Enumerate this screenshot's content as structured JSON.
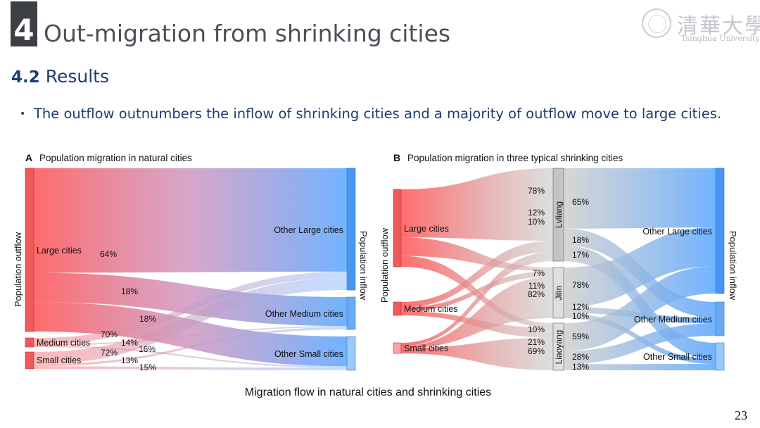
{
  "section": {
    "number": "4",
    "title": "Out-migration from shrinking cities"
  },
  "logo": {
    "chinese": "清華大學",
    "english": "Tsinghua University"
  },
  "subtitle": {
    "number": "4.2",
    "text": "Results"
  },
  "bullet": {
    "marker": "•",
    "text": "The outflow outnumbers the inflow of shrinking cities and a majority of outflow move to large cities."
  },
  "caption": "Migration flow in natural cities and shrinking cities",
  "page_number": "23",
  "colors": {
    "source_red": "#ff6b6b",
    "target_blue": "#4a9df5",
    "mid_gray": "#c8c8c8",
    "title_navy": "#1e3c72"
  },
  "chart_data": [
    {
      "type": "sankey",
      "panel": "A",
      "title": "Population migration in natural cities",
      "left_axis_label": "Population outflow",
      "right_axis_label": "Population inflow",
      "sources": [
        "Large cities",
        "Medium cities",
        "Small cities"
      ],
      "targets": [
        "Other Large cities",
        "Other Medium cities",
        "Other Small cities"
      ],
      "flows": [
        {
          "from": "Large cities",
          "to": "Other Large cities",
          "share": 64,
          "label": "64%"
        },
        {
          "from": "Large cities",
          "to": "Other Medium cities",
          "share": 18,
          "label": "18%"
        },
        {
          "from": "Large cities",
          "to": "Other Small cities",
          "share": 18,
          "label": "18%"
        },
        {
          "from": "Medium cities",
          "to": "Other Large cities",
          "share": 70,
          "label": "70%"
        },
        {
          "from": "Medium cities",
          "to": "Other Medium cities",
          "share": 14,
          "label": "14%"
        },
        {
          "from": "Medium cities",
          "to": "Other Small cities",
          "share": 16,
          "label": "16%"
        },
        {
          "from": "Small cities",
          "to": "Other Large cities",
          "share": 72,
          "label": "72%"
        },
        {
          "from": "Small cities",
          "to": "Other Medium cities",
          "share": 13,
          "label": "13%"
        },
        {
          "from": "Small cities",
          "to": "Other Small cities",
          "share": 15,
          "label": "15%"
        }
      ]
    },
    {
      "type": "sankey",
      "panel": "B",
      "title": "Population migration in three typical shrinking cities",
      "left_axis_label": "Population outflow",
      "right_axis_label": "Population inflow",
      "sources": [
        "Large cities",
        "Medium cities",
        "Small cities"
      ],
      "middle": [
        "Lvliang",
        "Jilin",
        "Liaoyang"
      ],
      "targets": [
        "Other Large cities",
        "Other Medium cities",
        "Other Small cities"
      ],
      "inflows": [
        {
          "from": "Large cities",
          "to": "Lvliang",
          "share": 78,
          "label": "78%"
        },
        {
          "from": "Medium cities",
          "to": "Lvliang",
          "share": 12,
          "label": "12%"
        },
        {
          "from": "Small cities",
          "to": "Lvliang",
          "share": 10,
          "label": "10%"
        },
        {
          "from": "Large cities",
          "to": "Jilin",
          "share": 7,
          "label": "7%"
        },
        {
          "from": "Medium cities",
          "to": "Jilin",
          "share": 11,
          "label": "11%"
        },
        {
          "from": "Small cities",
          "to": "Jilin",
          "share": 82,
          "label": "82%"
        },
        {
          "from": "Large cities",
          "to": "Liaoyang",
          "share": 10,
          "label": "10%"
        },
        {
          "from": "Medium cities",
          "to": "Liaoyang",
          "share": 21,
          "label": "21%"
        },
        {
          "from": "Small cities",
          "to": "Liaoyang",
          "share": 69,
          "label": "69%"
        }
      ],
      "outflows": [
        {
          "from": "Lvliang",
          "to": "Other Large cities",
          "share": 65,
          "label": "65%"
        },
        {
          "from": "Lvliang",
          "to": "Other Medium cities",
          "share": 18,
          "label": "18%"
        },
        {
          "from": "Lvliang",
          "to": "Other Small cities",
          "share": 17,
          "label": "17%"
        },
        {
          "from": "Jilin",
          "to": "Other Large cities",
          "share": 78,
          "label": "78%"
        },
        {
          "from": "Jilin",
          "to": "Other Medium cities",
          "share": 12,
          "label": "12%"
        },
        {
          "from": "Jilin",
          "to": "Other Small cities",
          "share": 10,
          "label": "10%"
        },
        {
          "from": "Liaoyang",
          "to": "Other Large cities",
          "share": 59,
          "label": "59%"
        },
        {
          "from": "Liaoyang",
          "to": "Other Medium cities",
          "share": 28,
          "label": "28%"
        },
        {
          "from": "Liaoyang",
          "to": "Other Small cities",
          "share": 13,
          "label": "13%"
        }
      ]
    }
  ]
}
